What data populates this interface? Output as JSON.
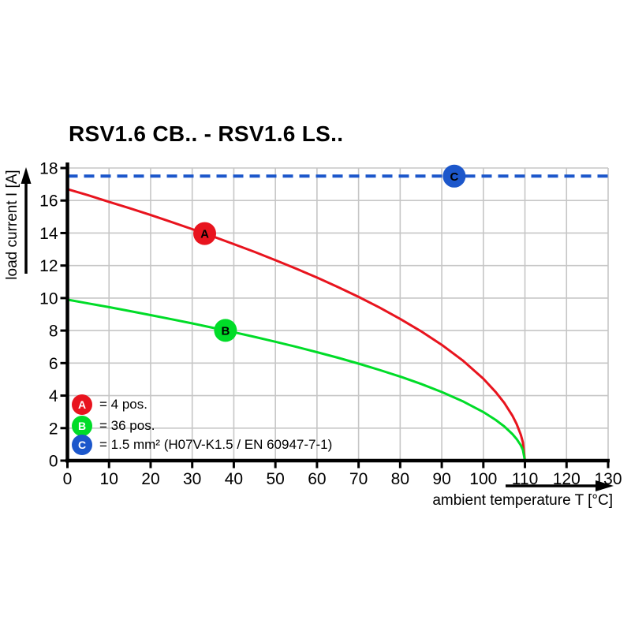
{
  "title": "RSV1.6 CB.. - RSV1.6 LS..",
  "chart_data": {
    "type": "line",
    "title": "RSV1.6 CB.. - RSV1.6 LS..",
    "xlabel": "ambient temperature T [°C]",
    "ylabel": "load current I [A]",
    "xlim": [
      0,
      130
    ],
    "ylim": [
      0,
      18
    ],
    "x_ticks": [
      0,
      10,
      20,
      30,
      40,
      50,
      60,
      70,
      80,
      90,
      100,
      110,
      120,
      130
    ],
    "y_ticks": [
      0,
      2,
      4,
      6,
      8,
      10,
      12,
      14,
      16,
      18
    ],
    "grid": true,
    "grid_color": "#c6c6c6",
    "axis_color": "#000000",
    "series": [
      {
        "name": "A",
        "legend": "= 4 pos.",
        "color": "#e8141e",
        "line_style": "solid",
        "points": [
          [
            0,
            16.7
          ],
          [
            5,
            16.32
          ],
          [
            10,
            15.92
          ],
          [
            15,
            15.52
          ],
          [
            20,
            15.11
          ],
          [
            25,
            14.68
          ],
          [
            30,
            14.24
          ],
          [
            35,
            13.79
          ],
          [
            40,
            13.32
          ],
          [
            45,
            12.84
          ],
          [
            50,
            12.33
          ],
          [
            55,
            11.81
          ],
          [
            60,
            11.26
          ],
          [
            65,
            10.68
          ],
          [
            70,
            10.07
          ],
          [
            75,
            9.42
          ],
          [
            80,
            8.72
          ],
          [
            85,
            7.96
          ],
          [
            90,
            7.12
          ],
          [
            95,
            6.17
          ],
          [
            100,
            5.04
          ],
          [
            103,
            4.21
          ],
          [
            105,
            3.56
          ],
          [
            107,
            2.76
          ],
          [
            108,
            2.25
          ],
          [
            109,
            1.59
          ],
          [
            109.5,
            1.13
          ],
          [
            110,
            0
          ]
        ]
      },
      {
        "name": "B",
        "legend": "= 36 pos.",
        "color": "#00dc28",
        "line_style": "solid",
        "points": [
          [
            0,
            9.9
          ],
          [
            5,
            9.67
          ],
          [
            10,
            9.44
          ],
          [
            15,
            9.2
          ],
          [
            20,
            8.95
          ],
          [
            25,
            8.7
          ],
          [
            30,
            8.44
          ],
          [
            35,
            8.17
          ],
          [
            40,
            7.9
          ],
          [
            45,
            7.61
          ],
          [
            50,
            7.31
          ],
          [
            55,
            7.0
          ],
          [
            60,
            6.67
          ],
          [
            65,
            6.33
          ],
          [
            70,
            5.97
          ],
          [
            75,
            5.58
          ],
          [
            80,
            5.17
          ],
          [
            85,
            4.72
          ],
          [
            90,
            4.22
          ],
          [
            95,
            3.66
          ],
          [
            100,
            2.99
          ],
          [
            103,
            2.5
          ],
          [
            105,
            2.11
          ],
          [
            107,
            1.63
          ],
          [
            108,
            1.33
          ],
          [
            109,
            0.94
          ],
          [
            109.5,
            0.67
          ],
          [
            110,
            0
          ]
        ]
      },
      {
        "name": "C",
        "legend": "= 1.5 mm² (H07V-K1.5 / EN 60947-7-1)",
        "color": "#1c57cb",
        "line_style": "dashed",
        "hline_value": 17.5
      }
    ],
    "markers": [
      {
        "series": "A",
        "label": "A",
        "t": 33,
        "i": 13.97,
        "color": "#e8141e"
      },
      {
        "series": "B",
        "label": "B",
        "t": 38,
        "i": 8.01,
        "color": "#00dc28"
      },
      {
        "series": "C",
        "label": "C",
        "t": 93,
        "i": 17.5,
        "color": "#1c57cb"
      }
    ]
  },
  "legend": {
    "items": [
      {
        "letter": "A",
        "text": "= 4 pos.",
        "color": "#e8141e"
      },
      {
        "letter": "B",
        "text": "= 36 pos.",
        "color": "#00dc28"
      },
      {
        "letter": "C",
        "text": "= 1.5 mm² (H07V-K1.5 / EN 60947-7-1)",
        "color": "#1c57cb"
      }
    ]
  }
}
